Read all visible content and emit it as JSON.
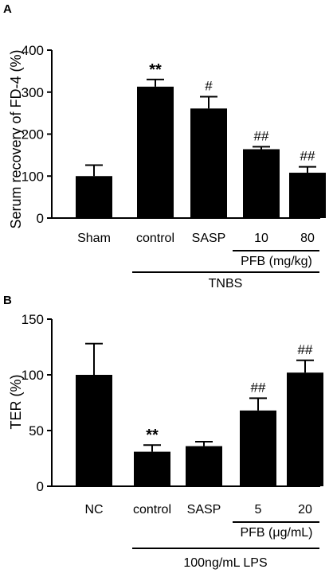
{
  "chart_data": [
    {
      "panel": "A",
      "type": "bar",
      "ylabel": "Serum recovery of FD-4 (%)",
      "ylim": [
        0,
        400
      ],
      "yticks": [
        "0",
        "100",
        "200",
        "300",
        "400"
      ],
      "categories": [
        "Sham",
        "control",
        "SASP",
        "10",
        "80"
      ],
      "values": [
        100,
        313,
        261,
        164,
        108
      ],
      "errors": [
        26,
        17,
        28,
        6,
        14
      ],
      "significance": [
        "",
        "**",
        "#",
        "##",
        "##"
      ],
      "group_labels": [
        {
          "text": "PFB (mg/kg)",
          "from": 3,
          "to": 4
        },
        {
          "text": "TNBS",
          "from": 1,
          "to": 4
        }
      ]
    },
    {
      "panel": "B",
      "type": "bar",
      "ylabel": "TER (%)",
      "ylim": [
        0,
        150
      ],
      "yticks": [
        "0",
        "50",
        "100",
        "150"
      ],
      "categories": [
        "NC",
        "control",
        "SASP",
        "5",
        "20"
      ],
      "values": [
        100,
        31,
        36,
        68,
        102
      ],
      "errors": [
        28,
        6,
        4,
        11,
        11
      ],
      "significance": [
        "",
        "**",
        "",
        "##",
        "##"
      ],
      "group_labels": [
        {
          "text": "PFB (μg/mL)",
          "from": 3,
          "to": 4
        },
        {
          "text": "100ng/mL LPS",
          "from": 1,
          "to": 4
        }
      ]
    }
  ]
}
